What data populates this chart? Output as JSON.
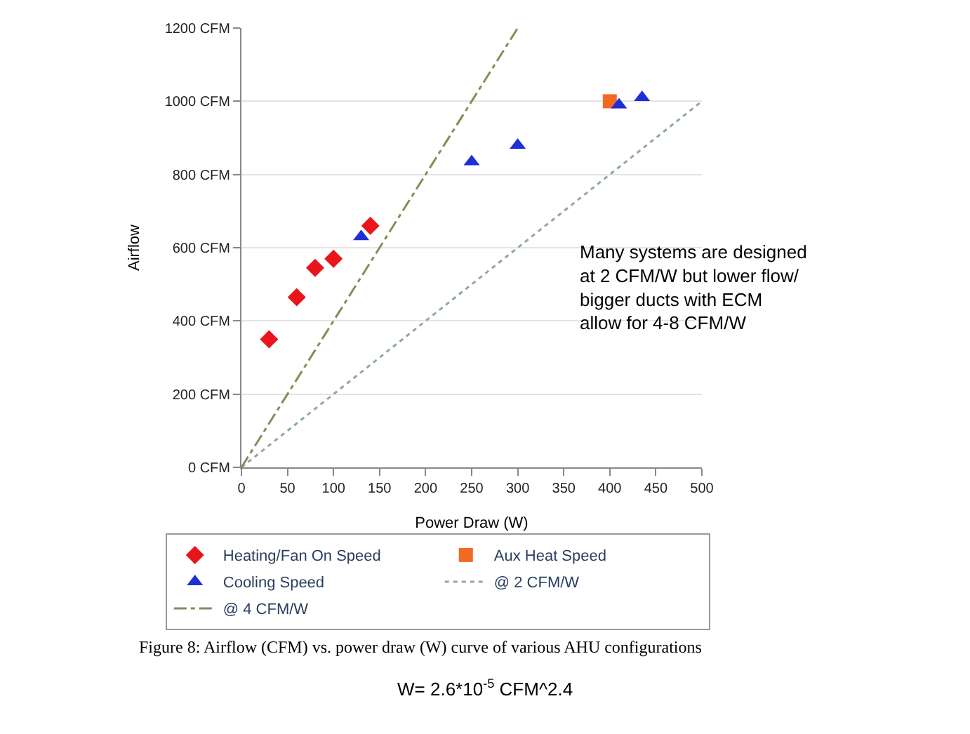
{
  "chart_data": {
    "type": "scatter",
    "xlabel": "Power Draw (W)",
    "ylabel": "Airflow",
    "xlim": [
      0,
      500
    ],
    "xticks": [
      0,
      50,
      100,
      150,
      200,
      250,
      300,
      350,
      400,
      450,
      500
    ],
    "ylim": [
      0,
      1200
    ],
    "yticks": [
      {
        "value": 0,
        "label": "0 CFM"
      },
      {
        "value": 200,
        "label": "200 CFM"
      },
      {
        "value": 400,
        "label": "400 CFM"
      },
      {
        "value": 600,
        "label": "600 CFM"
      },
      {
        "value": 800,
        "label": "800 CFM"
      },
      {
        "value": 1000,
        "label": "1000 CFM"
      },
      {
        "value": 1200,
        "label": "1200 CFM"
      }
    ],
    "grid": "y",
    "legend": "bottom",
    "series": [
      {
        "name": "Heating/Fan On Speed",
        "marker": "diamond",
        "color": "#e8161b",
        "x": [
          30,
          60,
          80,
          100,
          140
        ],
        "values": [
          350,
          465,
          545,
          570,
          660
        ]
      },
      {
        "name": "Aux Heat Speed",
        "marker": "square",
        "color": "#f26a21",
        "x": [
          400
        ],
        "values": [
          1000
        ]
      },
      {
        "name": "Cooling Speed",
        "marker": "triangle",
        "color": "#1f2fd6",
        "x": [
          130,
          250,
          300,
          410,
          435
        ],
        "values": [
          630,
          835,
          880,
          990,
          1010
        ]
      },
      {
        "name": "@ 2 CFM/W",
        "type": "line",
        "marker": "none",
        "line_style": "dotted",
        "color": "#8fa8a0",
        "x": [
          0,
          500
        ],
        "values": [
          0,
          1000
        ]
      },
      {
        "name": "@ 4 CFM/W",
        "type": "line",
        "marker": "none",
        "line_style": "dashed",
        "color": "#8a8a5a",
        "x": [
          0,
          300
        ],
        "values": [
          0,
          1200
        ]
      }
    ],
    "annotations": [
      "Many systems are designed\nat 2 CFM/W but lower flow/\nbigger ducts with ECM\nallow for 4-8 CFM/W",
      "Figure 8: Airflow (CFM) vs. power draw (W) curve of various AHU configurations",
      "W= 2.6*10$^{-5}$ CFM^2.4"
    ]
  }
}
